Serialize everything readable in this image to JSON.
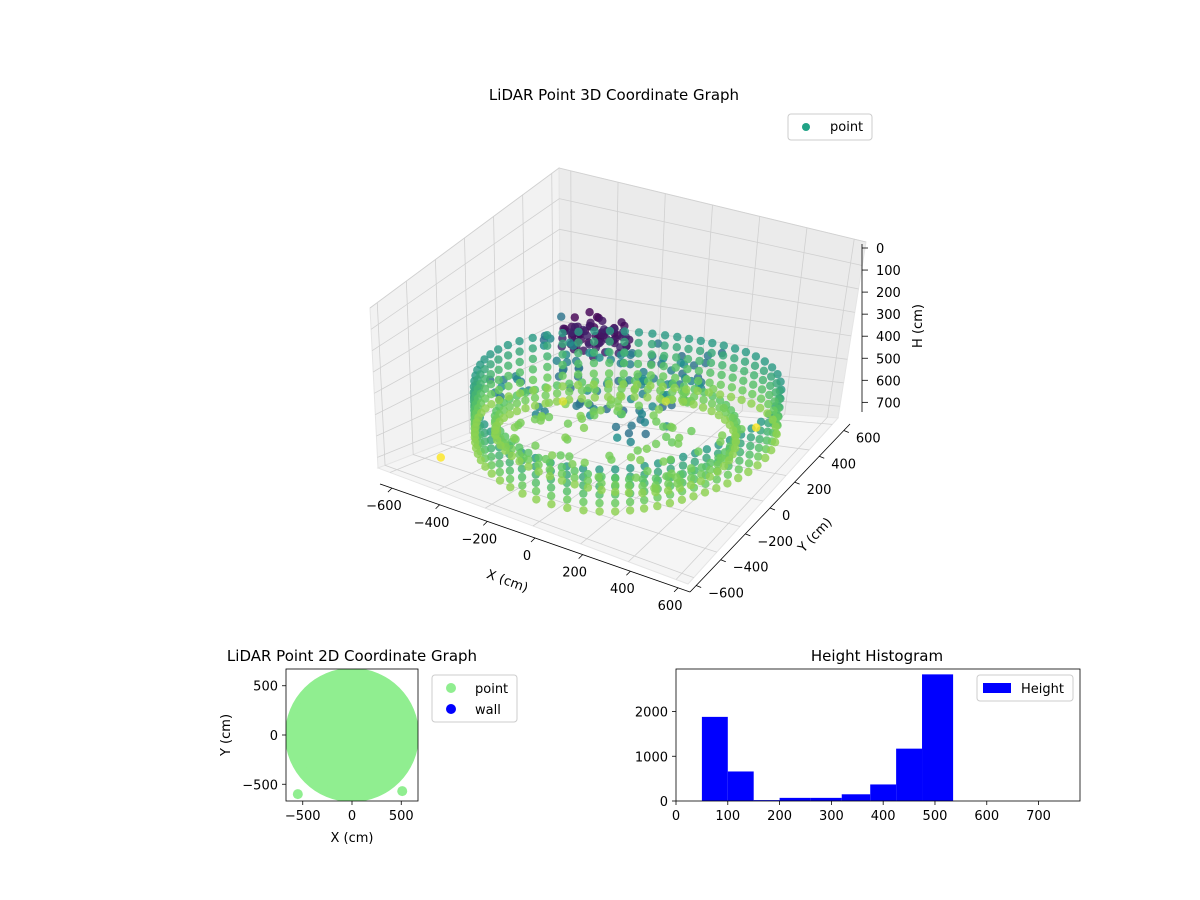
{
  "colors": {
    "point_3d_legend": "#21a386",
    "point_2d": "#90ee90",
    "wall_2d": "#0000ff",
    "histogram": "#0000ff",
    "colormap": "viridis"
  },
  "chart_data": [
    {
      "type": "scatter3d",
      "title": "LiDAR Point 3D Coordinate Graph",
      "xlabel": "X (cm)",
      "ylabel": "Y (cm)",
      "zlabel": "H (cm)",
      "xlim": [
        -650,
        650
      ],
      "ylim": [
        -650,
        650
      ],
      "zlim": [
        0,
        750
      ],
      "z_inverted": true,
      "xticks": [
        "−600",
        "−400",
        "−200",
        "0",
        "200",
        "400",
        "600"
      ],
      "yticks": [
        "−600",
        "−400",
        "−200",
        "0",
        "200",
        "400",
        "600"
      ],
      "zticks": [
        "0",
        "100",
        "200",
        "300",
        "400",
        "500",
        "600",
        "700"
      ],
      "legend": [
        "point"
      ],
      "legend_position": "upper-right",
      "grid": true,
      "series": [
        {
          "kind": "outer-ring",
          "radius": 620,
          "height_range": [
            450,
            640
          ],
          "color_by": "height"
        },
        {
          "kind": "inner-ring",
          "radius": 470,
          "height_range": [
            580,
            640
          ],
          "color_by": "height"
        },
        {
          "kind": "ceiling-cap",
          "center": [
            0,
            -180
          ],
          "radius": 130,
          "height_range": [
            80,
            160
          ],
          "color_by": "height"
        },
        {
          "kind": "interior-scatter",
          "height_range": [
            320,
            430
          ],
          "color_by": "height"
        },
        {
          "kind": "outliers",
          "points": [
            [
              -580,
              -320,
              760
            ],
            [
              -530,
              480,
              720
            ],
            [
              -100,
              550,
              700
            ],
            [
              130,
              520,
              620
            ],
            [
              330,
              540,
              760
            ],
            [
              520,
              300,
              590
            ]
          ]
        }
      ]
    },
    {
      "type": "scatter",
      "title": "LiDAR Point 2D Coordinate Graph",
      "xlabel": "X (cm)",
      "ylabel": "Y (cm)",
      "xlim": [
        -670,
        670
      ],
      "ylim": [
        -670,
        670
      ],
      "xticks": [
        "−500",
        "0",
        "500"
      ],
      "yticks": [
        "−500",
        "0",
        "500"
      ],
      "legend": [
        "point",
        "wall"
      ],
      "legend_position": "outside-right",
      "series": [
        {
          "name": "point",
          "kind": "filled-disc",
          "radius": 680
        },
        {
          "name": "point",
          "kind": "outliers",
          "points": [
            [
              -550,
              -600
            ],
            [
              510,
              -570
            ]
          ]
        }
      ]
    },
    {
      "type": "bar",
      "title": "Height Histogram",
      "xlabel": "",
      "ylabel": "",
      "xlim": [
        0,
        780
      ],
      "ylim": [
        0,
        2950
      ],
      "xticks": [
        "0",
        "100",
        "200",
        "300",
        "400",
        "500",
        "600",
        "700"
      ],
      "yticks": [
        "0",
        "1000",
        "2000"
      ],
      "legend": [
        "Height"
      ],
      "legend_position": "top-right",
      "bins": [
        {
          "x0": 50,
          "x1": 100,
          "count": 1880
        },
        {
          "x0": 100,
          "x1": 150,
          "count": 660
        },
        {
          "x0": 150,
          "x1": 200,
          "count": 20
        },
        {
          "x0": 200,
          "x1": 260,
          "count": 70
        },
        {
          "x0": 260,
          "x1": 320,
          "count": 70
        },
        {
          "x0": 320,
          "x1": 375,
          "count": 150
        },
        {
          "x0": 375,
          "x1": 425,
          "count": 370
        },
        {
          "x0": 425,
          "x1": 475,
          "count": 1170
        },
        {
          "x0": 475,
          "x1": 535,
          "count": 2830
        }
      ]
    }
  ]
}
